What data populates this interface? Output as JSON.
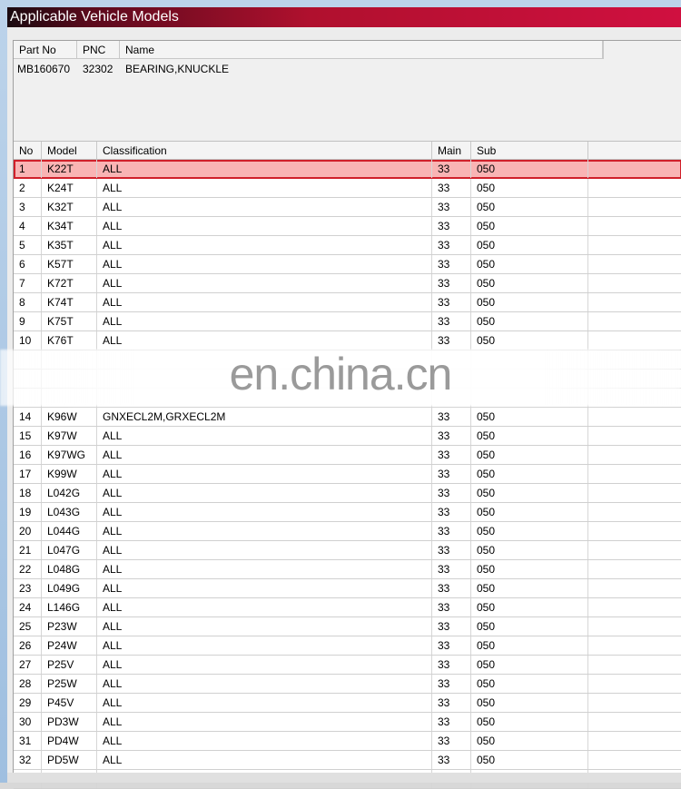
{
  "window": {
    "title": "Applicable Vehicle Models"
  },
  "part": {
    "headers": [
      "Part No",
      "PNC",
      "Name"
    ],
    "values": [
      "MB160670",
      "32302",
      "BEARING,KNUCKLE"
    ]
  },
  "table": {
    "headers": [
      "No",
      "Model",
      "Classification",
      "Main",
      "Sub"
    ],
    "selected_row": "1",
    "rows": [
      [
        "1",
        "K22T",
        "ALL",
        "33",
        "050"
      ],
      [
        "2",
        "K24T",
        "ALL",
        "33",
        "050"
      ],
      [
        "3",
        "K32T",
        "ALL",
        "33",
        "050"
      ],
      [
        "4",
        "K34T",
        "ALL",
        "33",
        "050"
      ],
      [
        "5",
        "K35T",
        "ALL",
        "33",
        "050"
      ],
      [
        "6",
        "K57T",
        "ALL",
        "33",
        "050"
      ],
      [
        "7",
        "K72T",
        "ALL",
        "33",
        "050"
      ],
      [
        "8",
        "K74T",
        "ALL",
        "33",
        "050"
      ],
      [
        "9",
        "K75T",
        "ALL",
        "33",
        "050"
      ],
      [
        "10",
        "K76T",
        "ALL",
        "33",
        "050"
      ],
      [
        "14",
        "K96W",
        "GNXECL2M,GRXECL2M",
        "33",
        "050"
      ],
      [
        "15",
        "K97W",
        "ALL",
        "33",
        "050"
      ],
      [
        "16",
        "K97WG",
        "ALL",
        "33",
        "050"
      ],
      [
        "17",
        "K99W",
        "ALL",
        "33",
        "050"
      ],
      [
        "18",
        "L042G",
        "ALL",
        "33",
        "050"
      ],
      [
        "19",
        "L043G",
        "ALL",
        "33",
        "050"
      ],
      [
        "20",
        "L044G",
        "ALL",
        "33",
        "050"
      ],
      [
        "21",
        "L047G",
        "ALL",
        "33",
        "050"
      ],
      [
        "22",
        "L048G",
        "ALL",
        "33",
        "050"
      ],
      [
        "23",
        "L049G",
        "ALL",
        "33",
        "050"
      ],
      [
        "24",
        "L146G",
        "ALL",
        "33",
        "050"
      ],
      [
        "25",
        "P23W",
        "ALL",
        "33",
        "050"
      ],
      [
        "26",
        "P24W",
        "ALL",
        "33",
        "050"
      ],
      [
        "27",
        "P25V",
        "ALL",
        "33",
        "050"
      ],
      [
        "28",
        "P25W",
        "ALL",
        "33",
        "050"
      ],
      [
        "29",
        "P45V",
        "ALL",
        "33",
        "050"
      ],
      [
        "30",
        "PD3W",
        "ALL",
        "33",
        "050"
      ],
      [
        "31",
        "PD4W",
        "ALL",
        "33",
        "050"
      ],
      [
        "32",
        "PD5W",
        "ALL",
        "33",
        "050"
      ]
    ]
  },
  "watermark": "en.china.cn",
  "colors": {
    "selection": "#f9b4b4",
    "selection_border": "#d0202a",
    "title_bar": "#b0102e"
  }
}
